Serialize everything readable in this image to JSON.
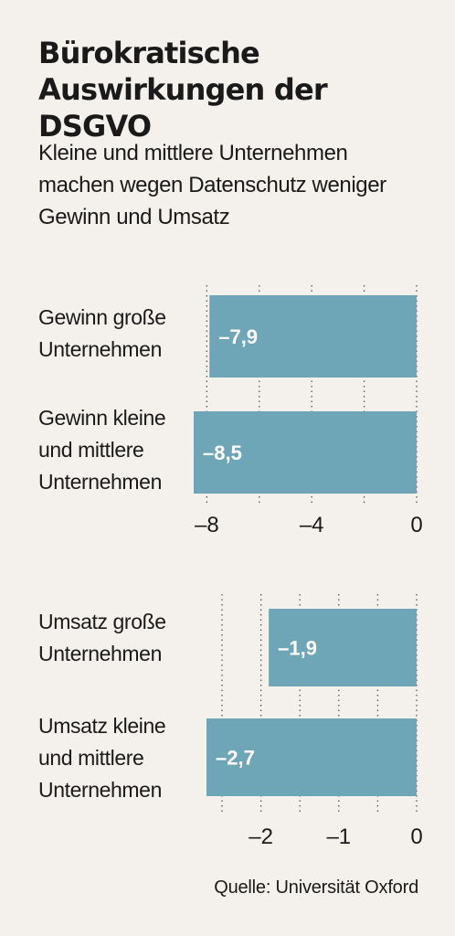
{
  "title_line1": "Bürokratische",
  "title_line2": "Auswirkungen der DSGVO",
  "subtitle_line1": "Kleine und mittlere Unternehmen",
  "subtitle_line2": "machen wegen Datenschutz weniger",
  "subtitle_line3": "Gewinn und Umsatz",
  "source": "Quelle: Universität Oxford",
  "colors": {
    "bar": "#6fa6b7",
    "grid": "#555555",
    "background": "#f4f1ec"
  },
  "chart_data": [
    {
      "type": "bar",
      "orientation": "horizontal",
      "categories": [
        [
          "Gewinn große",
          "Unternehmen"
        ],
        [
          "Gewinn kleine",
          "und mittlere",
          "Unternehmen"
        ]
      ],
      "values": [
        -7.9,
        -8.5
      ],
      "value_labels": [
        "–7,9",
        "–8,5"
      ],
      "xlim": [
        -8.5,
        0
      ],
      "xticks": [
        -8,
        -6,
        -4,
        -2,
        0
      ],
      "xtick_labels": [
        "–8",
        "",
        "–4",
        "",
        "0"
      ],
      "grid": "dotted vertical"
    },
    {
      "type": "bar",
      "orientation": "horizontal",
      "categories": [
        [
          "Umsatz große",
          "Unternehmen"
        ],
        [
          "Umsatz kleine",
          "und mittlere",
          "Unternehmen"
        ]
      ],
      "values": [
        -1.9,
        -2.7
      ],
      "value_labels": [
        "–1,9",
        "–2,7"
      ],
      "xlim": [
        -2.7,
        0
      ],
      "xticks": [
        -2.5,
        -2,
        -1.5,
        -1,
        -0.5,
        0
      ],
      "xtick_labels": [
        "",
        "–2",
        "",
        "–1",
        "",
        "0"
      ],
      "grid": "dotted vertical"
    }
  ]
}
